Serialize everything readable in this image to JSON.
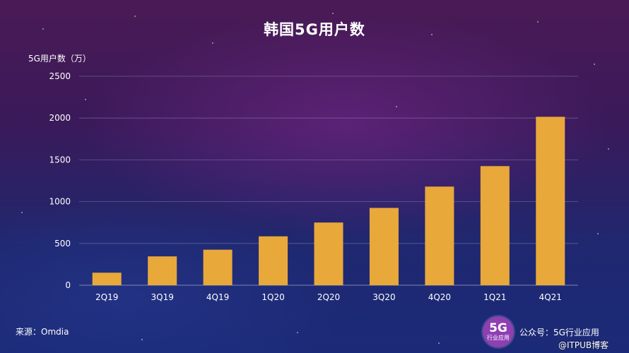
{
  "chart_data": {
    "type": "bar",
    "title": "韩国5G用户数",
    "ylabel": "5G用户数（万）",
    "xlabel": "",
    "categories": [
      "2Q19",
      "3Q19",
      "4Q19",
      "1Q20",
      "2Q20",
      "3Q20",
      "4Q20",
      "1Q21",
      "4Q21"
    ],
    "values": [
      150,
      345,
      425,
      585,
      750,
      925,
      1180,
      1425,
      2015
    ],
    "ylim": [
      0,
      2500
    ],
    "yticks": [
      0,
      500,
      1000,
      1500,
      2000,
      2500
    ],
    "grid": true,
    "legend": "none",
    "bar_color": "#e8a83a",
    "grid_color": "#8a8fb8"
  },
  "footer": {
    "source": "来源：Omdia",
    "logo_big": "5G",
    "logo_small": "行业应用",
    "account": "公众号：5G行业应用",
    "watermark": "@ITPUB博客"
  }
}
